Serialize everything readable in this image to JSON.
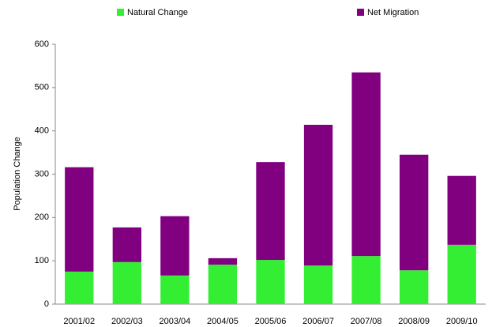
{
  "chart_data": {
    "type": "stacked-bar",
    "y_label": "Population Change",
    "categories": [
      "2001/02",
      "2002/03",
      "2003/04",
      "2004/05",
      "2005/06",
      "2006/07",
      "2007/08",
      "2008/09",
      "2009/10"
    ],
    "series": [
      {
        "name": "Natural Change",
        "color": "#33ee33",
        "values": [
          75,
          97,
          66,
          91,
          102,
          89,
          111,
          78,
          137
        ]
      },
      {
        "name": "Net Migration",
        "color": "#800080",
        "values": [
          241,
          80,
          137,
          15,
          226,
          325,
          424,
          267,
          159
        ]
      }
    ],
    "ylim": [
      0,
      600
    ],
    "yticks": [
      0,
      100,
      200,
      300,
      400,
      500,
      600
    ]
  }
}
